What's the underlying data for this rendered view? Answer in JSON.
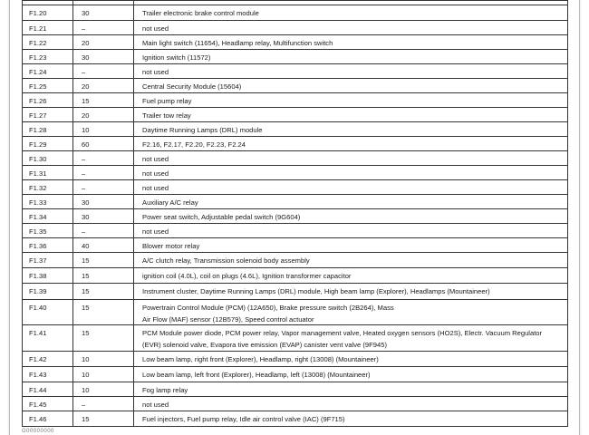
{
  "rows": [
    {
      "fuse": "F1.20",
      "amps": "30",
      "desc": [
        "Trailer electronic brake control module"
      ]
    },
    {
      "fuse": "F1.21",
      "amps": "–",
      "desc": [
        "not used"
      ]
    },
    {
      "fuse": "F1.22",
      "amps": "20",
      "desc": [
        "Main light switch (11654), Headlamp relay, Multifunction switch"
      ]
    },
    {
      "fuse": "F1.23",
      "amps": "30",
      "desc": [
        "Ignition switch (11572)"
      ]
    },
    {
      "fuse": "F1.24",
      "amps": "–",
      "desc": [
        "not used"
      ]
    },
    {
      "fuse": "F1.25",
      "amps": "20",
      "desc": [
        "Central Security Module (15604)"
      ]
    },
    {
      "fuse": "F1.26",
      "amps": "15",
      "desc": [
        "Fuel pump relay"
      ]
    },
    {
      "fuse": "F1.27",
      "amps": "20",
      "desc": [
        "Trailer tow relay"
      ]
    },
    {
      "fuse": "F1.28",
      "amps": "10",
      "desc": [
        "Daytime Running Lamps (DRL) module"
      ]
    },
    {
      "fuse": "F1.29",
      "amps": "60",
      "desc": [
        "F2.16, F2.17, F2.20, F2.23, F2.24"
      ]
    },
    {
      "fuse": "F1.30",
      "amps": "–",
      "desc": [
        "not used"
      ]
    },
    {
      "fuse": "F1.31",
      "amps": "–",
      "desc": [
        "not used"
      ]
    },
    {
      "fuse": "F1.32",
      "amps": "–",
      "desc": [
        "not used"
      ]
    },
    {
      "fuse": "F1.33",
      "amps": "30",
      "desc": [
        "Auxiliary A/C relay"
      ]
    },
    {
      "fuse": "F1.34",
      "amps": "30",
      "desc": [
        "Power seat switch, Adjustable pedal switch (9G604)"
      ]
    },
    {
      "fuse": "F1.35",
      "amps": "–",
      "desc": [
        "not used"
      ]
    },
    {
      "fuse": "F1.36",
      "amps": "40",
      "desc": [
        "Blower motor relay"
      ]
    },
    {
      "fuse": "F1.37",
      "amps": "15",
      "desc": [
        "A/C clutch relay, Transmission solenoid body assembly"
      ]
    },
    {
      "fuse": "F1.38",
      "amps": "15",
      "desc": [
        "ignition coil (4.0L), coil on plugs (4.6L), Ignition transformer capacitor"
      ]
    },
    {
      "fuse": "F1.39",
      "amps": "15",
      "desc": [
        "Instrument cluster, Daytime Running Lamps (DRL) module, High beam lamp  (Explorer), Headlamps (Mountaineer)"
      ]
    },
    {
      "fuse": "F1.40",
      "amps": "15",
      "desc": [
        "Powertrain Control Module (PCM) (12A650), Brake pressure switch (2B264), Mass",
        "Air Flow (MAF) sensor (12B579), Speed control actuator"
      ]
    },
    {
      "fuse": "F1.41",
      "amps": "15",
      "desc": [
        "PCM Module power diode, PCM power relay, Vapor management valve, Heated oxygen sensors (HO2S), Electr. Vacuum  Regulator",
        "(EVR) solenoid valve, Evapora tive emission (EVAP) canister vent valve (9F945)"
      ]
    },
    {
      "fuse": "F1.42",
      "amps": "10",
      "desc": [
        "Low beam lamp, right front (Explorer), Headlamp, right (13008) (Mountaineer)"
      ]
    },
    {
      "fuse": "F1.43",
      "amps": "10",
      "desc": [
        "Low beam lamp, left front (Explorer), Headlamp, left (13008) (Mountaineer)"
      ]
    },
    {
      "fuse": "F1.44",
      "amps": "10",
      "desc": [
        "Fog lamp relay"
      ]
    },
    {
      "fuse": "F1.45",
      "amps": "–",
      "desc": [
        "not used"
      ]
    },
    {
      "fuse": "F1.46",
      "amps": "15",
      "desc": [
        "Fuel injectors, Fuel pump relay, Idle air control valve (IAC) (9F715)"
      ]
    }
  ],
  "footer_code": "G00000000"
}
